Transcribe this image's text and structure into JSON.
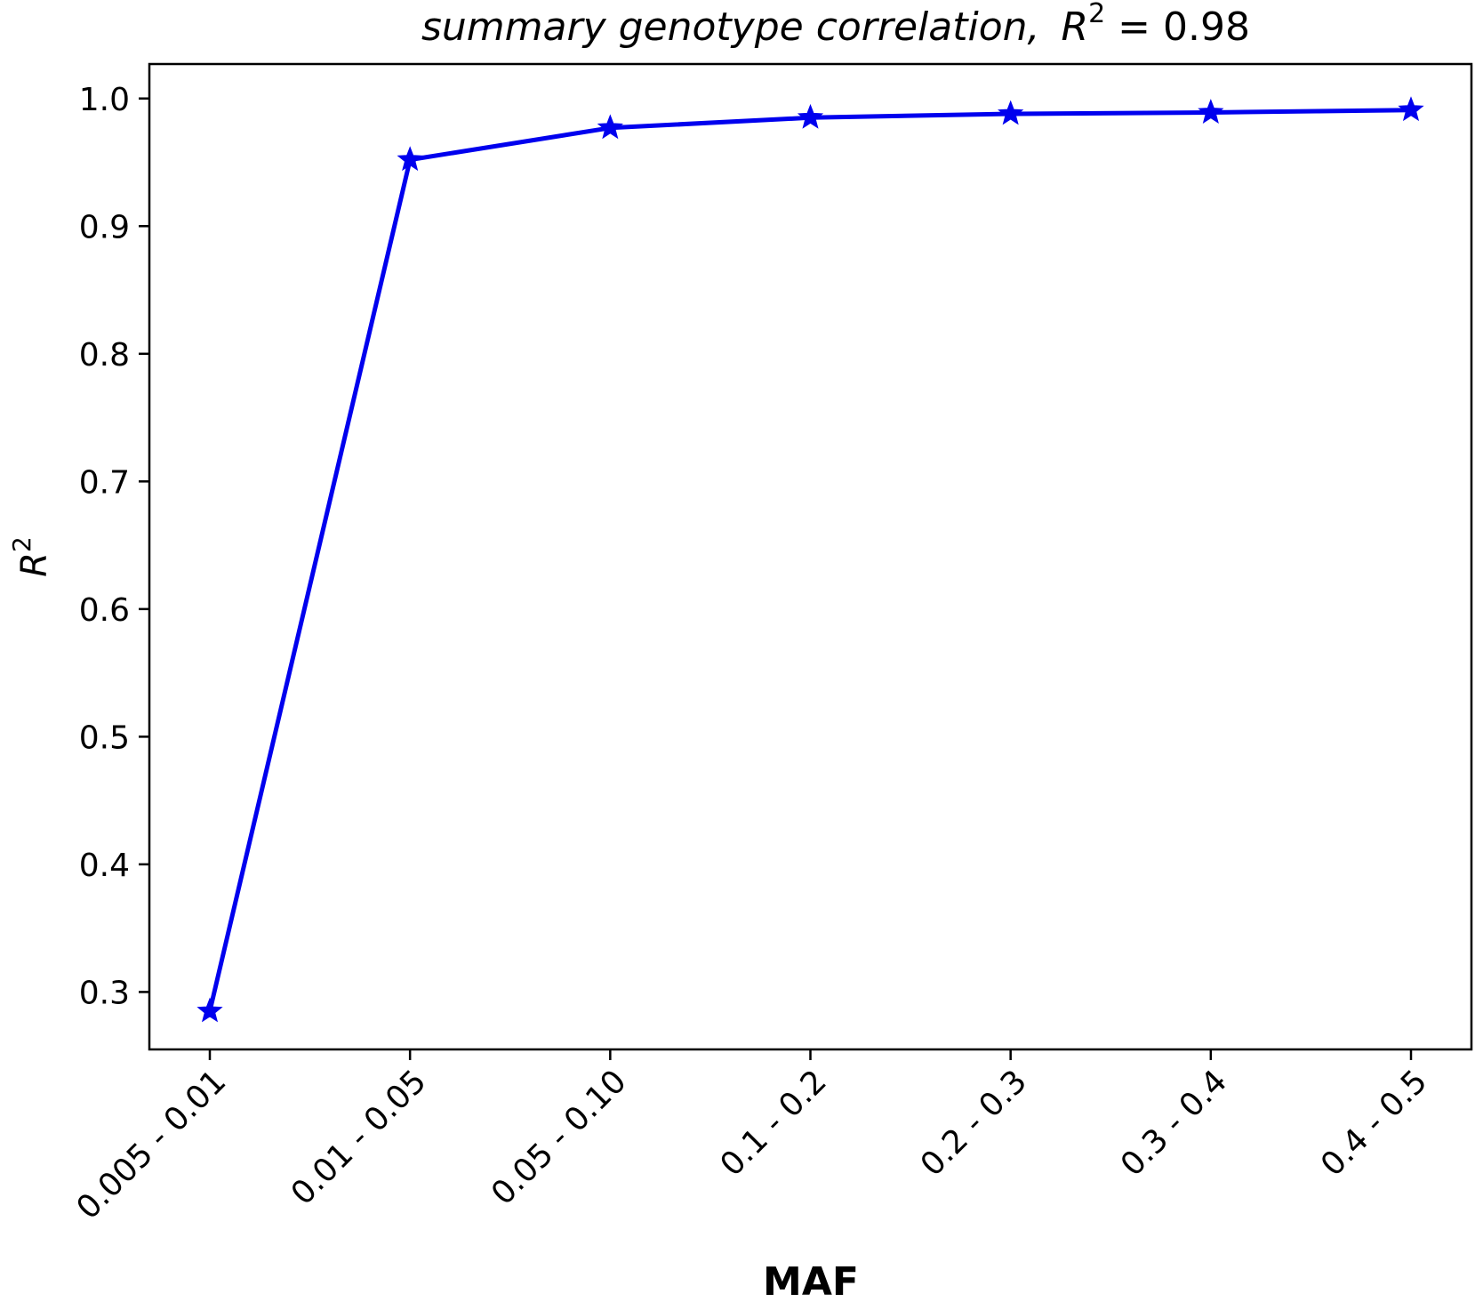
{
  "chart_data": {
    "type": "line",
    "title_prefix": "summary genotype correlation,",
    "title_r": "R",
    "title_sup": "2",
    "title_suffix": " = 0.98",
    "xlabel": "MAF",
    "ylabel": "R",
    "ylabel_sup": "2",
    "categories": [
      "0.005 - 0.01",
      "0.01 - 0.05",
      "0.05 - 0.10",
      "0.1 - 0.2",
      "0.2 - 0.3",
      "0.3 - 0.4",
      "0.4 - 0.5"
    ],
    "series": [
      {
        "values": [
          0.285,
          0.952,
          0.977,
          0.985,
          0.988,
          0.989,
          0.991
        ],
        "color": "#0000ee",
        "marker": "star"
      }
    ],
    "yticks": [
      "0.3",
      "0.4",
      "0.5",
      "0.6",
      "0.7",
      "0.8",
      "0.9",
      "1.0"
    ],
    "ylim": [
      0.255,
      1.027
    ],
    "grid": false,
    "legend": "none"
  }
}
